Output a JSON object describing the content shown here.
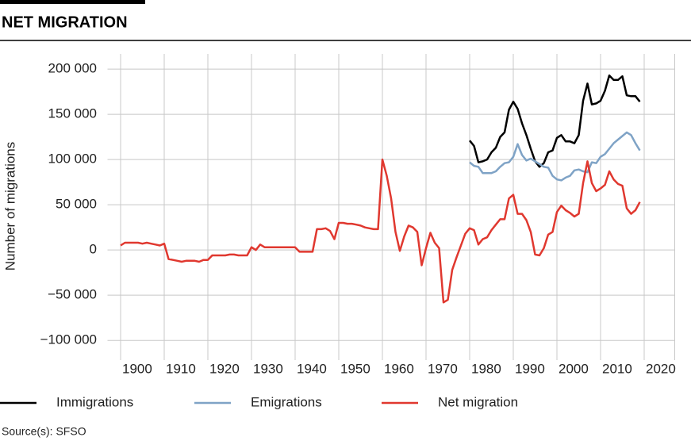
{
  "chart_data": {
    "type": "line",
    "title": "NET MIGRATION",
    "y_label": "Number of migrations",
    "source": "Source(s): SFSO",
    "x": [
      1900,
      1901,
      1902,
      1903,
      1904,
      1905,
      1906,
      1907,
      1908,
      1909,
      1910,
      1911,
      1912,
      1913,
      1914,
      1915,
      1916,
      1917,
      1918,
      1919,
      1920,
      1921,
      1922,
      1923,
      1924,
      1925,
      1926,
      1927,
      1928,
      1929,
      1930,
      1931,
      1932,
      1933,
      1934,
      1935,
      1936,
      1937,
      1938,
      1939,
      1940,
      1941,
      1942,
      1943,
      1944,
      1945,
      1946,
      1947,
      1948,
      1949,
      1950,
      1951,
      1952,
      1953,
      1954,
      1955,
      1956,
      1957,
      1958,
      1959,
      1960,
      1961,
      1962,
      1963,
      1964,
      1965,
      1966,
      1967,
      1968,
      1969,
      1970,
      1971,
      1972,
      1973,
      1974,
      1975,
      1976,
      1977,
      1978,
      1979,
      1980,
      1981,
      1982,
      1983,
      1984,
      1985,
      1986,
      1987,
      1988,
      1989,
      1990,
      1991,
      1992,
      1993,
      1994,
      1995,
      1996,
      1997,
      1998,
      1999,
      2000,
      2001,
      2002,
      2003,
      2004,
      2005,
      2006,
      2007,
      2008,
      2009,
      2010,
      2011,
      2012,
      2013,
      2014,
      2015,
      2016,
      2017,
      2018,
      2019
    ],
    "series": [
      {
        "name": "Immigrations",
        "color": "#000000",
        "values": [
          null,
          null,
          null,
          null,
          null,
          null,
          null,
          null,
          null,
          null,
          null,
          null,
          null,
          null,
          null,
          null,
          null,
          null,
          null,
          null,
          null,
          null,
          null,
          null,
          null,
          null,
          null,
          null,
          null,
          null,
          null,
          null,
          null,
          null,
          null,
          null,
          null,
          null,
          null,
          null,
          null,
          null,
          null,
          null,
          null,
          null,
          null,
          null,
          null,
          null,
          null,
          null,
          null,
          null,
          null,
          null,
          null,
          null,
          null,
          null,
          null,
          null,
          null,
          null,
          null,
          null,
          null,
          null,
          null,
          null,
          null,
          null,
          null,
          null,
          null,
          null,
          null,
          null,
          null,
          null,
          121000,
          115000,
          97000,
          98000,
          100000,
          108000,
          113000,
          125000,
          130000,
          155000,
          164000,
          156000,
          140000,
          127000,
          112000,
          98000,
          92000,
          96000,
          108000,
          110000,
          124000,
          127000,
          120000,
          120000,
          118000,
          127000,
          165000,
          184000,
          161000,
          162000,
          165000,
          176000,
          193000,
          188000,
          188000,
          192000,
          171000,
          170000,
          170000,
          164000
        ]
      },
      {
        "name": "Emigrations",
        "color": "#7fa3c6",
        "values": [
          null,
          null,
          null,
          null,
          null,
          null,
          null,
          null,
          null,
          null,
          null,
          null,
          null,
          null,
          null,
          null,
          null,
          null,
          null,
          null,
          null,
          null,
          null,
          null,
          null,
          null,
          null,
          null,
          null,
          null,
          null,
          null,
          null,
          null,
          null,
          null,
          null,
          null,
          null,
          null,
          null,
          null,
          null,
          null,
          null,
          null,
          null,
          null,
          null,
          null,
          null,
          null,
          null,
          null,
          null,
          null,
          null,
          null,
          null,
          null,
          null,
          null,
          null,
          null,
          null,
          null,
          null,
          null,
          null,
          null,
          null,
          null,
          null,
          null,
          null,
          null,
          null,
          null,
          null,
          null,
          97000,
          93000,
          92000,
          85000,
          85000,
          85000,
          87000,
          92000,
          96000,
          97000,
          103000,
          117000,
          105000,
          99000,
          101000,
          98000,
          95000,
          92000,
          91000,
          82000,
          78000,
          77000,
          80000,
          82000,
          88000,
          89000,
          87000,
          86000,
          97000,
          96000,
          103000,
          106000,
          112000,
          118000,
          122000,
          126000,
          130000,
          127000,
          118000,
          110000
        ]
      },
      {
        "name": "Net migration",
        "color": "#e0382f",
        "values": [
          5000,
          8000,
          8000,
          8000,
          8000,
          7000,
          8000,
          7000,
          6000,
          5000,
          7000,
          -10000,
          -11000,
          -12000,
          -13000,
          -12000,
          -12000,
          -12000,
          -13000,
          -11000,
          -11000,
          -6000,
          -6000,
          -6000,
          -6000,
          -5000,
          -5000,
          -6000,
          -6000,
          -6000,
          3000,
          0,
          6000,
          3000,
          3000,
          3000,
          3000,
          3000,
          3000,
          3000,
          3000,
          -2000,
          -2000,
          -2000,
          -2000,
          23000,
          23000,
          24000,
          21000,
          12000,
          30000,
          30000,
          29000,
          29000,
          28000,
          27000,
          25000,
          24000,
          23000,
          23000,
          100000,
          82000,
          57000,
          20000,
          -1000,
          15000,
          27000,
          25000,
          20000,
          -17000,
          2000,
          19000,
          8000,
          2000,
          -58000,
          -55000,
          -22000,
          -8000,
          5000,
          18000,
          24000,
          22000,
          6000,
          12000,
          14000,
          22000,
          28000,
          34000,
          34000,
          57000,
          61000,
          40000,
          40000,
          33000,
          20000,
          -5000,
          -6000,
          2000,
          17000,
          20000,
          42000,
          49000,
          44000,
          41000,
          37000,
          40000,
          74000,
          98000,
          74000,
          65000,
          68000,
          72000,
          87000,
          78000,
          73000,
          71000,
          46000,
          40000,
          44000,
          53000
        ]
      }
    ],
    "xlim": [
      1897,
      2027
    ],
    "xticks": [
      1900,
      1910,
      1920,
      1930,
      1940,
      1950,
      1960,
      1970,
      1980,
      1990,
      2000,
      2010,
      2020
    ],
    "ylim": [
      -120000,
      215000
    ],
    "yticks": [
      {
        "value": -100000,
        "label": "−100 000"
      },
      {
        "value": -50000,
        "label": "−50 000"
      },
      0,
      {
        "value": 50000,
        "label": "50 000"
      },
      {
        "value": 100000,
        "label": "100 000"
      },
      {
        "value": 150000,
        "label": "150 000"
      },
      {
        "value": 200000,
        "label": "200 000"
      }
    ],
    "grid": true,
    "legend": "bottom"
  }
}
